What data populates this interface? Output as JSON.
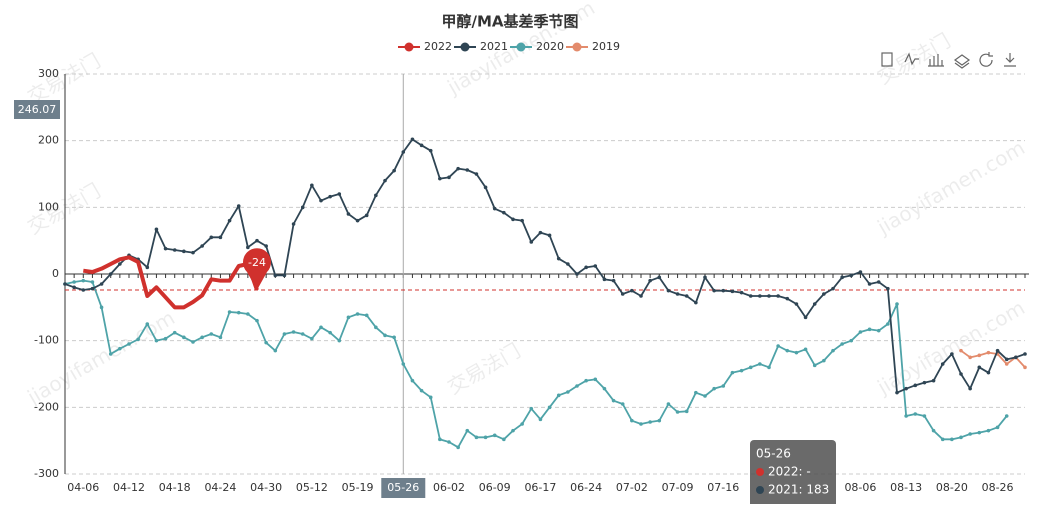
{
  "chart_data": {
    "type": "line",
    "title": "甲醇/MA基差季节图",
    "categories": [
      null,
      null,
      "04-06",
      null,
      null,
      null,
      null,
      "04-12",
      null,
      null,
      null,
      null,
      "04-18",
      null,
      null,
      null,
      null,
      "04-24",
      null,
      null,
      null,
      null,
      "04-30",
      null,
      null,
      null,
      null,
      "05-12",
      null,
      null,
      null,
      null,
      "05-19",
      null,
      null,
      null,
      null,
      "05-26",
      null,
      null,
      null,
      null,
      "06-02",
      null,
      null,
      null,
      null,
      "06-09",
      null,
      null,
      null,
      null,
      "06-17",
      null,
      null,
      null,
      null,
      "06-24",
      null,
      null,
      null,
      null,
      "07-02",
      null,
      null,
      null,
      null,
      "07-09",
      null,
      null,
      null,
      null,
      "07-16",
      null,
      null,
      null,
      null,
      null,
      null,
      null,
      null,
      null,
      null,
      null,
      null,
      null,
      null,
      "08-06",
      null,
      null,
      null,
      null,
      "08-13",
      null,
      null,
      null,
      null,
      "08-20",
      null,
      null,
      null,
      null,
      "08-26",
      null,
      null,
      null
    ],
    "series": [
      {
        "name": "2022",
        "color": "#d0312d",
        "values": [
          null,
          null,
          5,
          3,
          8,
          15,
          22,
          25,
          18,
          -33,
          -20,
          -35,
          -50,
          -50,
          -42,
          -32,
          -8,
          -10,
          -10,
          12,
          15,
          -24,
          null,
          null,
          null,
          null,
          null,
          null,
          null,
          null,
          null,
          null,
          null,
          null,
          null,
          null,
          null,
          null,
          null,
          null,
          null,
          null,
          null,
          null,
          null,
          null,
          null,
          null,
          null,
          null,
          null,
          null,
          null,
          null,
          null,
          null,
          null,
          null,
          null,
          null,
          null,
          null,
          null,
          null,
          null,
          null,
          null,
          null,
          null,
          null,
          null,
          null,
          null,
          null,
          null,
          null,
          null,
          null,
          null,
          null,
          null,
          null,
          null,
          null,
          null,
          null,
          null,
          null,
          null,
          null,
          null,
          null,
          null,
          null,
          null,
          null,
          null,
          null,
          null,
          null,
          null,
          null,
          null,
          null,
          null,
          null
        ]
      },
      {
        "name": "2021",
        "color": "#2f4554",
        "values": [
          -15,
          -20,
          -24,
          -22,
          -15,
          0,
          15,
          28,
          22,
          10,
          67,
          38,
          36,
          34,
          32,
          42,
          55,
          55,
          80,
          102,
          40,
          50,
          42,
          -2,
          -2,
          75,
          100,
          133,
          110,
          116,
          120,
          90,
          80,
          88,
          118,
          140,
          155,
          183,
          202,
          193,
          185,
          143,
          145,
          158,
          156,
          150,
          130,
          98,
          92,
          82,
          80,
          48,
          62,
          58,
          23,
          15,
          0,
          10,
          12,
          -8,
          -10,
          -30,
          -25,
          -33,
          -10,
          -5,
          -25,
          -30,
          -33,
          -43,
          -5,
          -25,
          -25,
          -26,
          -28,
          -33,
          -33,
          -33,
          -33,
          -37,
          -45,
          -65,
          -45,
          -30,
          -22,
          -5,
          -2,
          3,
          -15,
          -12,
          -22,
          -178,
          -172,
          -167,
          -163,
          -160,
          -135,
          -120,
          -150,
          -172,
          -140,
          -148,
          -115,
          -128,
          -125,
          -120
        ]
      },
      {
        "name": "2020",
        "color": "#4ea3a8",
        "values": [
          -15,
          -12,
          -10,
          -12,
          -50,
          -120,
          -112,
          -105,
          -98,
          -75,
          -100,
          -97,
          -88,
          -95,
          -102,
          -95,
          -90,
          -95,
          -57,
          -58,
          -60,
          -70,
          -103,
          -115,
          -90,
          -87,
          -90,
          -97,
          -80,
          -88,
          -100,
          -65,
          -60,
          -62,
          -80,
          -92,
          -95,
          -135,
          -160,
          -175,
          -185,
          -248,
          -252,
          -260,
          -235,
          -245,
          -245,
          -242,
          -248,
          -235,
          -225,
          -202,
          -218,
          -200,
          -182,
          -177,
          -168,
          -160,
          -158,
          -172,
          -190,
          -195,
          -220,
          -225,
          -222,
          -220,
          -195,
          -207,
          -206,
          -178,
          -183,
          -172,
          -168,
          -148,
          -145,
          -140,
          -135,
          -140,
          -108,
          -115,
          -118,
          -113,
          -137,
          -130,
          -115,
          -105,
          -100,
          -87,
          -83,
          -85,
          -75,
          -45,
          -213,
          -210,
          -213,
          -235,
          -248,
          -248,
          -245,
          -240,
          -238,
          -235,
          -230,
          -213,
          null,
          null
        ]
      },
      {
        "name": "2019",
        "color": "#e38b6c",
        "values": [
          null,
          null,
          null,
          null,
          null,
          null,
          null,
          null,
          null,
          null,
          null,
          null,
          null,
          null,
          null,
          null,
          null,
          null,
          null,
          null,
          null,
          null,
          null,
          null,
          null,
          null,
          null,
          null,
          null,
          null,
          null,
          null,
          null,
          null,
          null,
          null,
          null,
          null,
          null,
          null,
          null,
          null,
          null,
          null,
          null,
          null,
          null,
          null,
          null,
          null,
          null,
          null,
          null,
          null,
          null,
          null,
          null,
          null,
          null,
          null,
          null,
          null,
          null,
          null,
          null,
          null,
          null,
          null,
          null,
          null,
          null,
          null,
          null,
          null,
          null,
          null,
          null,
          null,
          null,
          null,
          null,
          null,
          null,
          null,
          null,
          null,
          null,
          null,
          null,
          null,
          null,
          null,
          null,
          null,
          null,
          null,
          null,
          null,
          -115,
          -125,
          -122,
          -118,
          -120,
          -135,
          -125,
          -140
        ]
      }
    ],
    "ylim": [
      -300,
      300
    ],
    "yticks": [
      -300,
      -200,
      -100,
      0,
      100,
      200,
      300
    ],
    "grid": true,
    "mark_line": {
      "value": -24,
      "label": "-24"
    },
    "axis_pointer": {
      "index": 37,
      "y_label": "246.07"
    },
    "tooltip": {
      "title": "05-26",
      "rows": [
        "2022: -",
        "2021: 183"
      ]
    },
    "watermark": [
      "交易法门",
      "jiaoyifamen.com"
    ]
  }
}
